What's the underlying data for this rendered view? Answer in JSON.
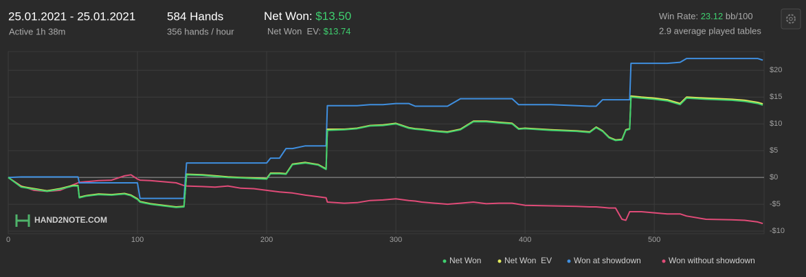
{
  "header": {
    "date_range": "25.01.2021 - 25.01.2021",
    "active": "Active 1h 38m",
    "hands": "584 Hands",
    "hands_per_hour": "356 hands / hour",
    "net_won_label": "Net Won:",
    "net_won_value": "$13.50",
    "net_won_ev_label": "Net Won  EV:",
    "net_won_ev_value": "$13.74",
    "win_rate_label": "Win Rate:",
    "win_rate_value": "23.12",
    "win_rate_unit": "bb/100",
    "tables": "2.9 average played tables",
    "watermark": "HAND2NOTE.COM"
  },
  "chart_data": {
    "type": "line",
    "grid": true,
    "xlim": [
      0,
      585
    ],
    "xticks": [
      0,
      100,
      200,
      300,
      400,
      500
    ],
    "ylim": [
      -10.5,
      23.5
    ],
    "yticks": [
      {
        "value": -10,
        "label": "-$10"
      },
      {
        "value": -5,
        "label": "-$5"
      },
      {
        "value": 0,
        "label": "$0"
      },
      {
        "value": 5,
        "label": "$5"
      },
      {
        "value": 10,
        "label": "$10"
      },
      {
        "value": 15,
        "label": "$15"
      },
      {
        "value": 20,
        "label": "$20"
      }
    ],
    "x": [
      0,
      10,
      20,
      30,
      40,
      50,
      54,
      55,
      60,
      70,
      80,
      90,
      95,
      100,
      102,
      110,
      120,
      130,
      136,
      138,
      150,
      160,
      170,
      180,
      190,
      200,
      203,
      210,
      215,
      220,
      230,
      240,
      246,
      247,
      260,
      270,
      280,
      290,
      300,
      310,
      315,
      320,
      330,
      340,
      350,
      360,
      370,
      380,
      390,
      395,
      400,
      420,
      440,
      450,
      455,
      460,
      465,
      470,
      475,
      478,
      481,
      482,
      490,
      500,
      510,
      520,
      525,
      540,
      560,
      570,
      580,
      584
    ],
    "series": [
      {
        "name": "Net Won",
        "color": "#3fcf6f",
        "values": [
          0,
          -1.8,
          -2.2,
          -2.6,
          -2.2,
          -1.6,
          -1.6,
          -3.8,
          -3.5,
          -3.2,
          -3.3,
          -3.1,
          -3.4,
          -4.1,
          -4.6,
          -5.0,
          -5.3,
          -5.6,
          -5.5,
          0.5,
          0.4,
          0.2,
          0,
          -0.1,
          -0.2,
          -0.3,
          0.7,
          0.7,
          0.6,
          2.4,
          2.7,
          2.3,
          1.5,
          8.8,
          8.9,
          9.1,
          9.6,
          9.7,
          10.0,
          9.2,
          9.0,
          8.9,
          8.6,
          8.4,
          8.9,
          10.4,
          10.4,
          10.2,
          10.0,
          9.0,
          9.1,
          8.8,
          8.6,
          8.4,
          9.3,
          8.6,
          7.4,
          6.9,
          7.0,
          8.8,
          9.0,
          15.0,
          14.8,
          14.6,
          14.3,
          13.6,
          14.8,
          14.6,
          14.4,
          14.2,
          13.8,
          13.5
        ]
      },
      {
        "name": "Net Won  EV",
        "color": "#e3ec5c",
        "values": [
          0,
          -1.7,
          -2.1,
          -2.5,
          -2.1,
          -1.5,
          -1.5,
          -3.7,
          -3.4,
          -3.1,
          -3.2,
          -3.0,
          -3.3,
          -4.0,
          -4.5,
          -4.9,
          -5.2,
          -5.5,
          -5.4,
          0.6,
          0.5,
          0.3,
          0.1,
          0,
          -0.1,
          -0.2,
          0.8,
          0.8,
          0.7,
          2.5,
          2.8,
          2.4,
          1.6,
          9.0,
          9.0,
          9.2,
          9.7,
          9.8,
          10.1,
          9.3,
          9.1,
          9.0,
          8.7,
          8.5,
          9.0,
          10.5,
          10.5,
          10.3,
          10.1,
          9.1,
          9.2,
          8.9,
          8.7,
          8.5,
          9.4,
          8.7,
          7.5,
          7.0,
          7.1,
          8.9,
          9.1,
          15.2,
          15.0,
          14.8,
          14.5,
          13.8,
          15.0,
          14.8,
          14.6,
          14.4,
          14.0,
          13.74
        ]
      },
      {
        "name": "Won at showdown",
        "color": "#3f8fe0",
        "values": [
          0,
          0.1,
          0.1,
          0.1,
          0.1,
          0.1,
          0.1,
          -1,
          -1,
          -1,
          -1,
          -1,
          -1,
          -1,
          -3.9,
          -3.9,
          -3.9,
          -3.9,
          -3.9,
          2.7,
          2.7,
          2.7,
          2.7,
          2.7,
          2.7,
          2.7,
          3.6,
          3.6,
          5.4,
          5.4,
          5.9,
          5.9,
          5.9,
          13.4,
          13.4,
          13.4,
          13.6,
          13.6,
          13.8,
          13.8,
          13.3,
          13.3,
          13.3,
          13.3,
          14.7,
          14.7,
          14.7,
          14.7,
          14.7,
          13.6,
          13.6,
          13.6,
          13.4,
          13.3,
          13.3,
          14.5,
          14.5,
          14.5,
          14.5,
          14.5,
          14.5,
          21.3,
          21.3,
          21.3,
          21.3,
          21.5,
          22.2,
          22.2,
          22.2,
          22.2,
          22.2,
          21.9
        ]
      },
      {
        "name": "Won without showdown",
        "color": "#e14b78",
        "values": [
          0,
          -1.6,
          -2.4,
          -2.6,
          -2.4,
          -1.4,
          -1.0,
          -0.9,
          -0.8,
          -0.6,
          -0.5,
          0.3,
          0.5,
          -0.3,
          -0.5,
          -0.6,
          -0.8,
          -1.0,
          -1.5,
          -1.6,
          -1.7,
          -1.8,
          -1.6,
          -2.0,
          -2.1,
          -2.4,
          -2.5,
          -2.7,
          -2.8,
          -2.9,
          -3.3,
          -3.6,
          -3.8,
          -4.6,
          -4.8,
          -4.7,
          -4.3,
          -4.2,
          -4.0,
          -4.3,
          -4.4,
          -4.6,
          -4.8,
          -5.0,
          -4.8,
          -4.6,
          -4.9,
          -4.8,
          -4.8,
          -5.0,
          -5.2,
          -5.3,
          -5.4,
          -5.5,
          -5.5,
          -5.6,
          -5.7,
          -5.7,
          -7.8,
          -8.0,
          -6.4,
          -6.4,
          -6.4,
          -6.6,
          -6.8,
          -6.8,
          -7.2,
          -7.8,
          -7.9,
          -8.0,
          -8.3,
          -8.6
        ]
      }
    ]
  }
}
